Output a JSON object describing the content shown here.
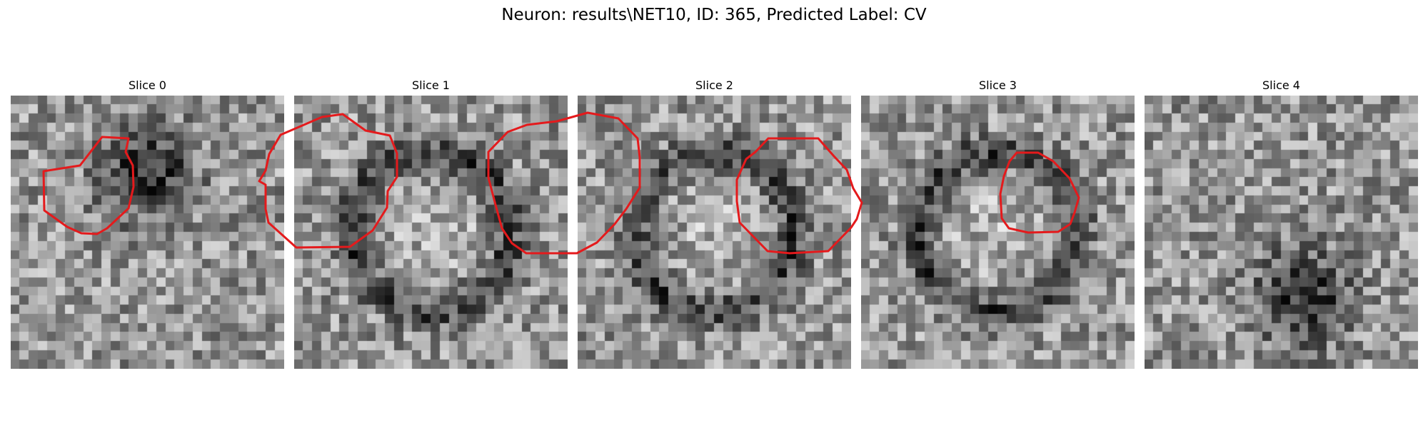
{
  "figure": {
    "title": "Neuron: results\\NET10, ID: 365, Predicted Label: CV"
  },
  "panels": [
    {
      "title": "Slice 0",
      "seed": 11,
      "feature": "blob",
      "dark_at": [
        0.5,
        0.28
      ]
    },
    {
      "title": "Slice 1",
      "seed": 23,
      "feature": "ring"
    },
    {
      "title": "Slice 2",
      "seed": 37,
      "feature": "ring"
    },
    {
      "title": "Slice 3",
      "seed": 51,
      "feature": "ring"
    },
    {
      "title": "Slice 4",
      "seed": 67,
      "feature": "blob",
      "dark_at": [
        0.58,
        0.74
      ]
    }
  ],
  "contours": [
    [
      [
        180,
        194
      ],
      [
        143,
        192
      ],
      [
        112,
        232
      ],
      [
        61,
        240
      ],
      [
        62,
        295
      ],
      [
        94,
        318
      ],
      [
        114,
        327
      ],
      [
        136,
        328
      ],
      [
        150,
        320
      ],
      [
        180,
        292
      ],
      [
        187,
        262
      ],
      [
        186,
        232
      ],
      [
        176,
        213
      ]
    ],
    [
      [
        451,
        164
      ],
      [
        480,
        160
      ],
      [
        512,
        183
      ],
      [
        546,
        190
      ],
      [
        556,
        215
      ],
      [
        556,
        248
      ],
      [
        543,
        268
      ],
      [
        542,
        291
      ],
      [
        522,
        323
      ],
      [
        490,
        346
      ],
      [
        415,
        347
      ],
      [
        376,
        312
      ],
      [
        372,
        293
      ],
      [
        372,
        259
      ],
      [
        363,
        254
      ],
      [
        372,
        239
      ],
      [
        377,
        216
      ],
      [
        393,
        189
      ],
      [
        421,
        177
      ]
    ],
    [
      [
        780,
        170
      ],
      [
        823,
        158
      ],
      [
        866,
        166
      ],
      [
        893,
        194
      ],
      [
        896,
        221
      ],
      [
        896,
        263
      ],
      [
        877,
        293
      ],
      [
        861,
        314
      ],
      [
        836,
        340
      ],
      [
        808,
        355
      ],
      [
        737,
        355
      ],
      [
        717,
        341
      ],
      [
        703,
        320
      ],
      [
        694,
        287
      ],
      [
        684,
        249
      ],
      [
        684,
        213
      ],
      [
        711,
        185
      ],
      [
        738,
        175
      ]
    ],
    [
      [
        1076,
        194
      ],
      [
        1146,
        194
      ],
      [
        1168,
        219
      ],
      [
        1186,
        238
      ],
      [
        1195,
        264
      ],
      [
        1207,
        284
      ],
      [
        1200,
        307
      ],
      [
        1192,
        319
      ],
      [
        1160,
        352
      ],
      [
        1106,
        355
      ],
      [
        1075,
        352
      ],
      [
        1036,
        312
      ],
      [
        1032,
        282
      ],
      [
        1032,
        252
      ],
      [
        1045,
        223
      ],
      [
        1058,
        213
      ]
    ],
    [
      [
        1424,
        214
      ],
      [
        1454,
        214
      ],
      [
        1475,
        226
      ],
      [
        1498,
        250
      ],
      [
        1511,
        277
      ],
      [
        1505,
        298
      ],
      [
        1499,
        314
      ],
      [
        1482,
        325
      ],
      [
        1440,
        326
      ],
      [
        1413,
        320
      ],
      [
        1403,
        306
      ],
      [
        1401,
        272
      ],
      [
        1406,
        247
      ],
      [
        1414,
        226
      ]
    ]
  ],
  "colors": {
    "contour": "#e41a1c",
    "background": "#ffffff"
  }
}
